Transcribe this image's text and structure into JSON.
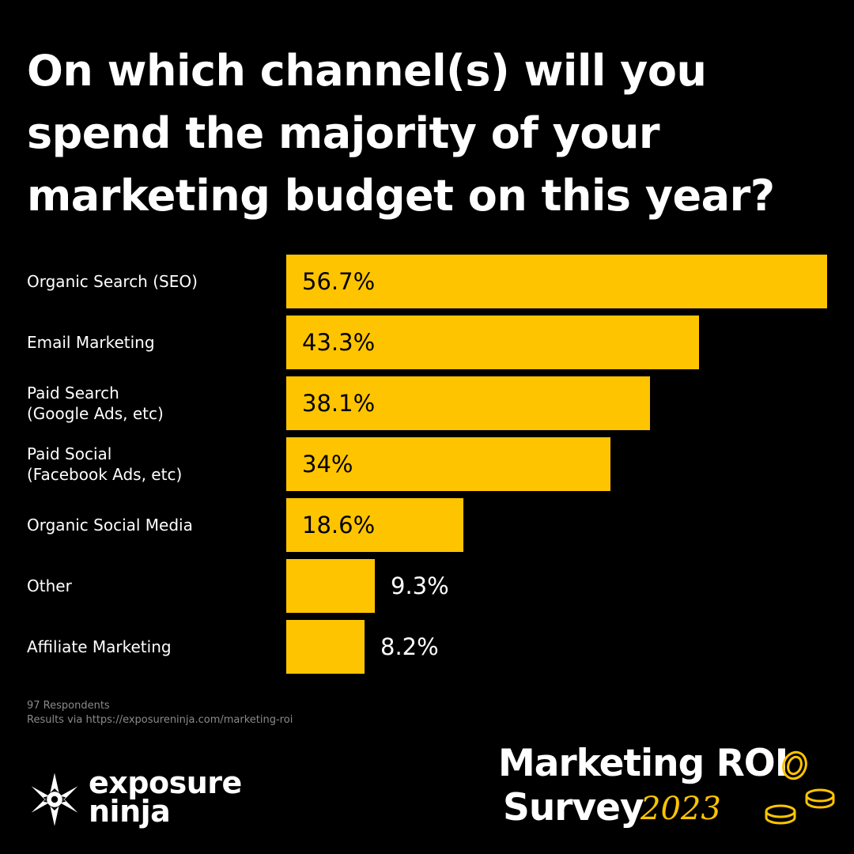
{
  "title": "On which channel(s) will you spend the majority of your marketing budget on this year?",
  "colors": {
    "background": "#000000",
    "bar": "#ffc400",
    "text": "#ffffff",
    "value_on_bar": "#000000",
    "footnote": "#8a8a8a"
  },
  "chart_data": {
    "type": "bar",
    "orientation": "horizontal",
    "categories": [
      "Organic Search (SEO)",
      "Email Marketing",
      "Paid Search\n(Google Ads, etc)",
      "Paid Social\n(Facebook Ads, etc)",
      "Organic Social Media",
      "Other",
      "Affiliate Marketing"
    ],
    "values": [
      56.7,
      43.3,
      38.1,
      34,
      18.6,
      9.3,
      8.2
    ],
    "value_labels": [
      "56.7%",
      "43.3%",
      "38.1%",
      "34%",
      "18.6%",
      "9.3%",
      "8.2%"
    ],
    "unit": "%",
    "grid": false,
    "legend": "none"
  },
  "footnote": {
    "respondents": "97 Respondents",
    "source": "Results via https://exposureninja.com/marketing-roi"
  },
  "brand": {
    "name_line1": "exposure",
    "name_line2": "ninja",
    "icon": "ninja-star-icon"
  },
  "survey": {
    "line1": "Marketing ROI",
    "line2": "Survey",
    "year": "2023",
    "icon": "coins-icon"
  }
}
